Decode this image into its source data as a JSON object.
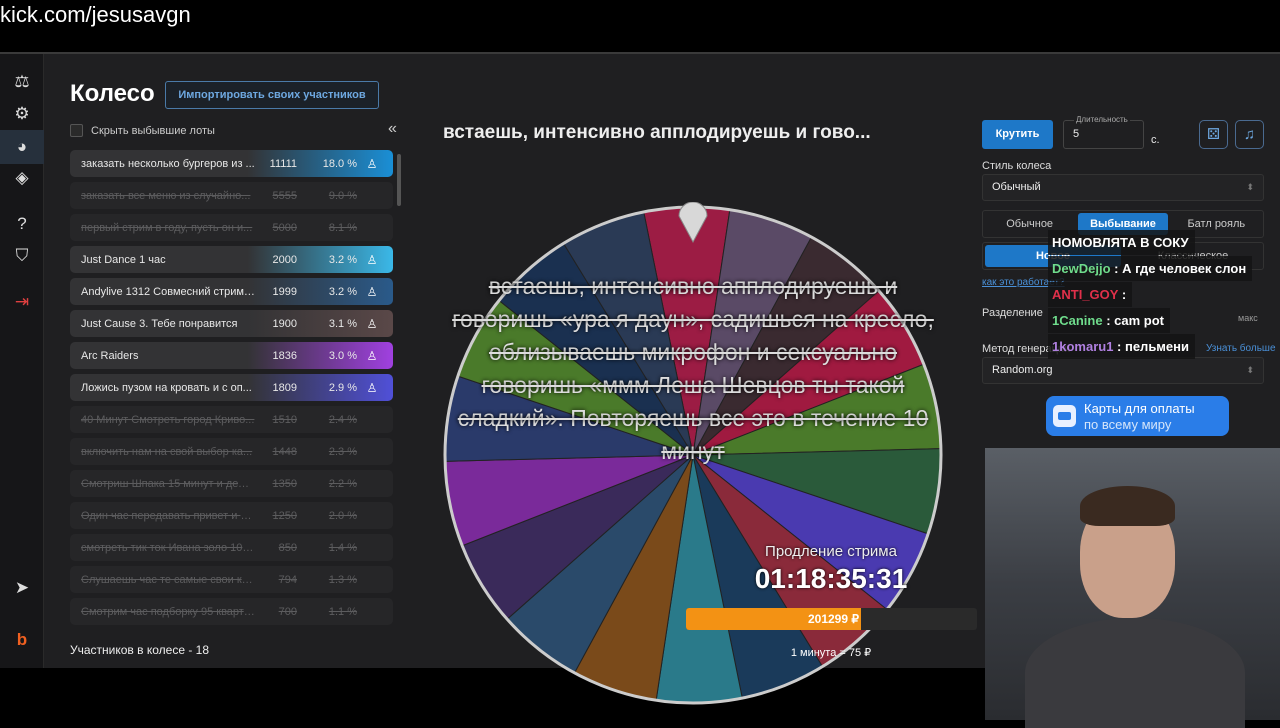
{
  "url": "kick.com/jesusavgn",
  "sidebar": {
    "icons": [
      "gavel-icon",
      "gear-icon",
      "wheel-icon",
      "layers-icon",
      "help-icon",
      "shield-icon",
      "logout-icon",
      "telegram-icon",
      "brand-icon"
    ]
  },
  "header": {
    "title": "Колесо",
    "import_label": "Импортировать своих участников",
    "hide_label": "Скрыть выбывшие лоты"
  },
  "lots": [
    {
      "name": "заказать несколько бургеров из ...",
      "amount": "11111",
      "pct": "18.0 %",
      "out": false,
      "color": "#1a8fd6"
    },
    {
      "name": "заказать все меню из случайно...",
      "amount": "5555",
      "pct": "9.0 %",
      "out": true
    },
    {
      "name": "первый стрим в году, пусть он и...",
      "amount": "5000",
      "pct": "8.1 %",
      "out": true
    },
    {
      "name": "Just Dance 1 час",
      "amount": "2000",
      "pct": "3.2 %",
      "out": false,
      "color": "#3ab8e8"
    },
    {
      "name": "Andylive 1312 Совмесний стрим ...",
      "amount": "1999",
      "pct": "3.2 %",
      "out": false,
      "color": "#2a5a8a"
    },
    {
      "name": "Just Cause 3. Тебе понравится",
      "amount": "1900",
      "pct": "3.1 %",
      "out": false,
      "color": "#5a4848"
    },
    {
      "name": "Arc Raiders",
      "amount": "1836",
      "pct": "3.0 %",
      "out": false,
      "color": "#a040e0"
    },
    {
      "name": "Ложись пузом на кровать и с оп...",
      "amount": "1809",
      "pct": "2.9 %",
      "out": false,
      "color": "#5050d8"
    },
    {
      "name": "40 Минут Смотреть город Криво...",
      "amount": "1510",
      "pct": "2.4 %",
      "out": true
    },
    {
      "name": "включить нам на свой выбор ка...",
      "amount": "1448",
      "pct": "2.3 %",
      "out": true
    },
    {
      "name": "Смотриш Шпака 15 минут и дела...",
      "amount": "1350",
      "pct": "2.2 %",
      "out": true
    },
    {
      "name": "Один час передавать привет и п...",
      "amount": "1250",
      "pct": "2.0 %",
      "out": true
    },
    {
      "name": "смотреть тик ток Ивана золо 10 м...",
      "amount": "850",
      "pct": "1.4 %",
      "out": true
    },
    {
      "name": "Слушаешь час те самые свои кри...",
      "amount": "794",
      "pct": "1.3 %",
      "out": true
    },
    {
      "name": "Смотрим час подборку 95 кварта...",
      "amount": "700",
      "pct": "1.1 %",
      "out": true
    }
  ],
  "participants_count": "Участников в колесе - 18",
  "wheel": {
    "title": "встаешь, интенсивно апплодируешь и гово...",
    "overlay": "встаешь, интенсивно апплодируешь и говоришь «ура я даун», садишься на кресло, облизываешь микрофон и сексуально говоришь «ммм Леша Шевцов ты такой сладкий». Повторяешь все это в течение 10 минут",
    "segment_colors": [
      "#9c1c44",
      "#5a4a66",
      "#3a2a30",
      "#a01a40",
      "#4a7a2a",
      "#2a5a3a",
      "#4a3ab0",
      "#8a2a3a",
      "#1a3a5a",
      "#2a7a8a",
      "#7a4a1a",
      "#2a4a6a",
      "#3a2a5a",
      "#7a2a9a",
      "#2a3a6a",
      "#4a7a2a",
      "#1a3050",
      "#2a3a55"
    ]
  },
  "stream": {
    "label": "Продление стрима",
    "timer": "01:18:35:31",
    "amount": "201299 ₽",
    "progress": 0.6,
    "rate": "1 минута = 75 ₽"
  },
  "controls": {
    "spin": "Крутить",
    "duration_label": "Длительность",
    "duration": "5",
    "sec": "с.",
    "style_label": "Стиль колеса",
    "style_value": "Обычный",
    "modes": [
      "Обычное",
      "Выбывание",
      "Батл рояль"
    ],
    "active_mode": 1,
    "sub_modes": [
      "Новое",
      "Классическое"
    ],
    "how": "как это работает?",
    "split_label": "Разделение",
    "max": "макс",
    "rng_label": "Метод генерации",
    "learn": "Узнать больше",
    "rng_value": "Random.org"
  },
  "chat": [
    {
      "user": "",
      "text": "НОМОВЛЯТА В СОКУ",
      "color": "#fff"
    },
    {
      "user": "DewDejjo",
      "text": " : А где человек слон",
      "color": "#6fdc8c"
    },
    {
      "user": "ANTI_GOY",
      "text": " :",
      "color": "#e0304a"
    },
    {
      "user": "1Canine",
      "text": " : cam pot",
      "color": "#6fdc8c"
    },
    {
      "user": "1komaru1",
      "text": " : пельмени",
      "color": "#b080e0"
    }
  ],
  "ad": {
    "line1": "Карты для оплаты",
    "line2": "по всему миру"
  }
}
